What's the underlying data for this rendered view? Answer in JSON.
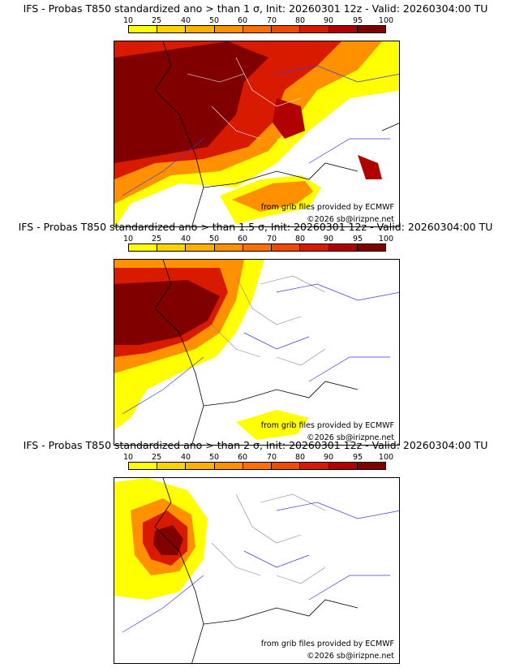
{
  "legend_ticks": [
    "10",
    "25",
    "40",
    "50",
    "60",
    "70",
    "80",
    "90",
    "95",
    "100"
  ],
  "legend_colors": [
    "#ffff00",
    "#ffd400",
    "#ffb000",
    "#ff9000",
    "#ff7000",
    "#f04a00",
    "#d81a00",
    "#b00000",
    "#800000"
  ],
  "panels": [
    {
      "title": "IFS - Probas T850  standardized ano > than 1 σ, Init: 20260301 12z - Valid: 20260304:00 TU",
      "credit_line1": "from grib files provided by ECMWF",
      "credit_line2": "©2026 sb@irizpne.net"
    },
    {
      "title": "IFS - Probas T850  standardized ano > than 1.5 σ, Init: 20260301 12z - Valid: 20260304:00 TU",
      "credit_line1": "from grib files provided by ECMWF",
      "credit_line2": "©2026 sb@irizpne.net"
    },
    {
      "title": "IFS - Probas T850  standardized ano > than 2 σ, Init: 20260301 12z - Valid: 20260304:00 TU",
      "credit_line1": "from grib files provided by ECMWF",
      "credit_line2": "©2026 sb@irizpne.net"
    }
  ]
}
